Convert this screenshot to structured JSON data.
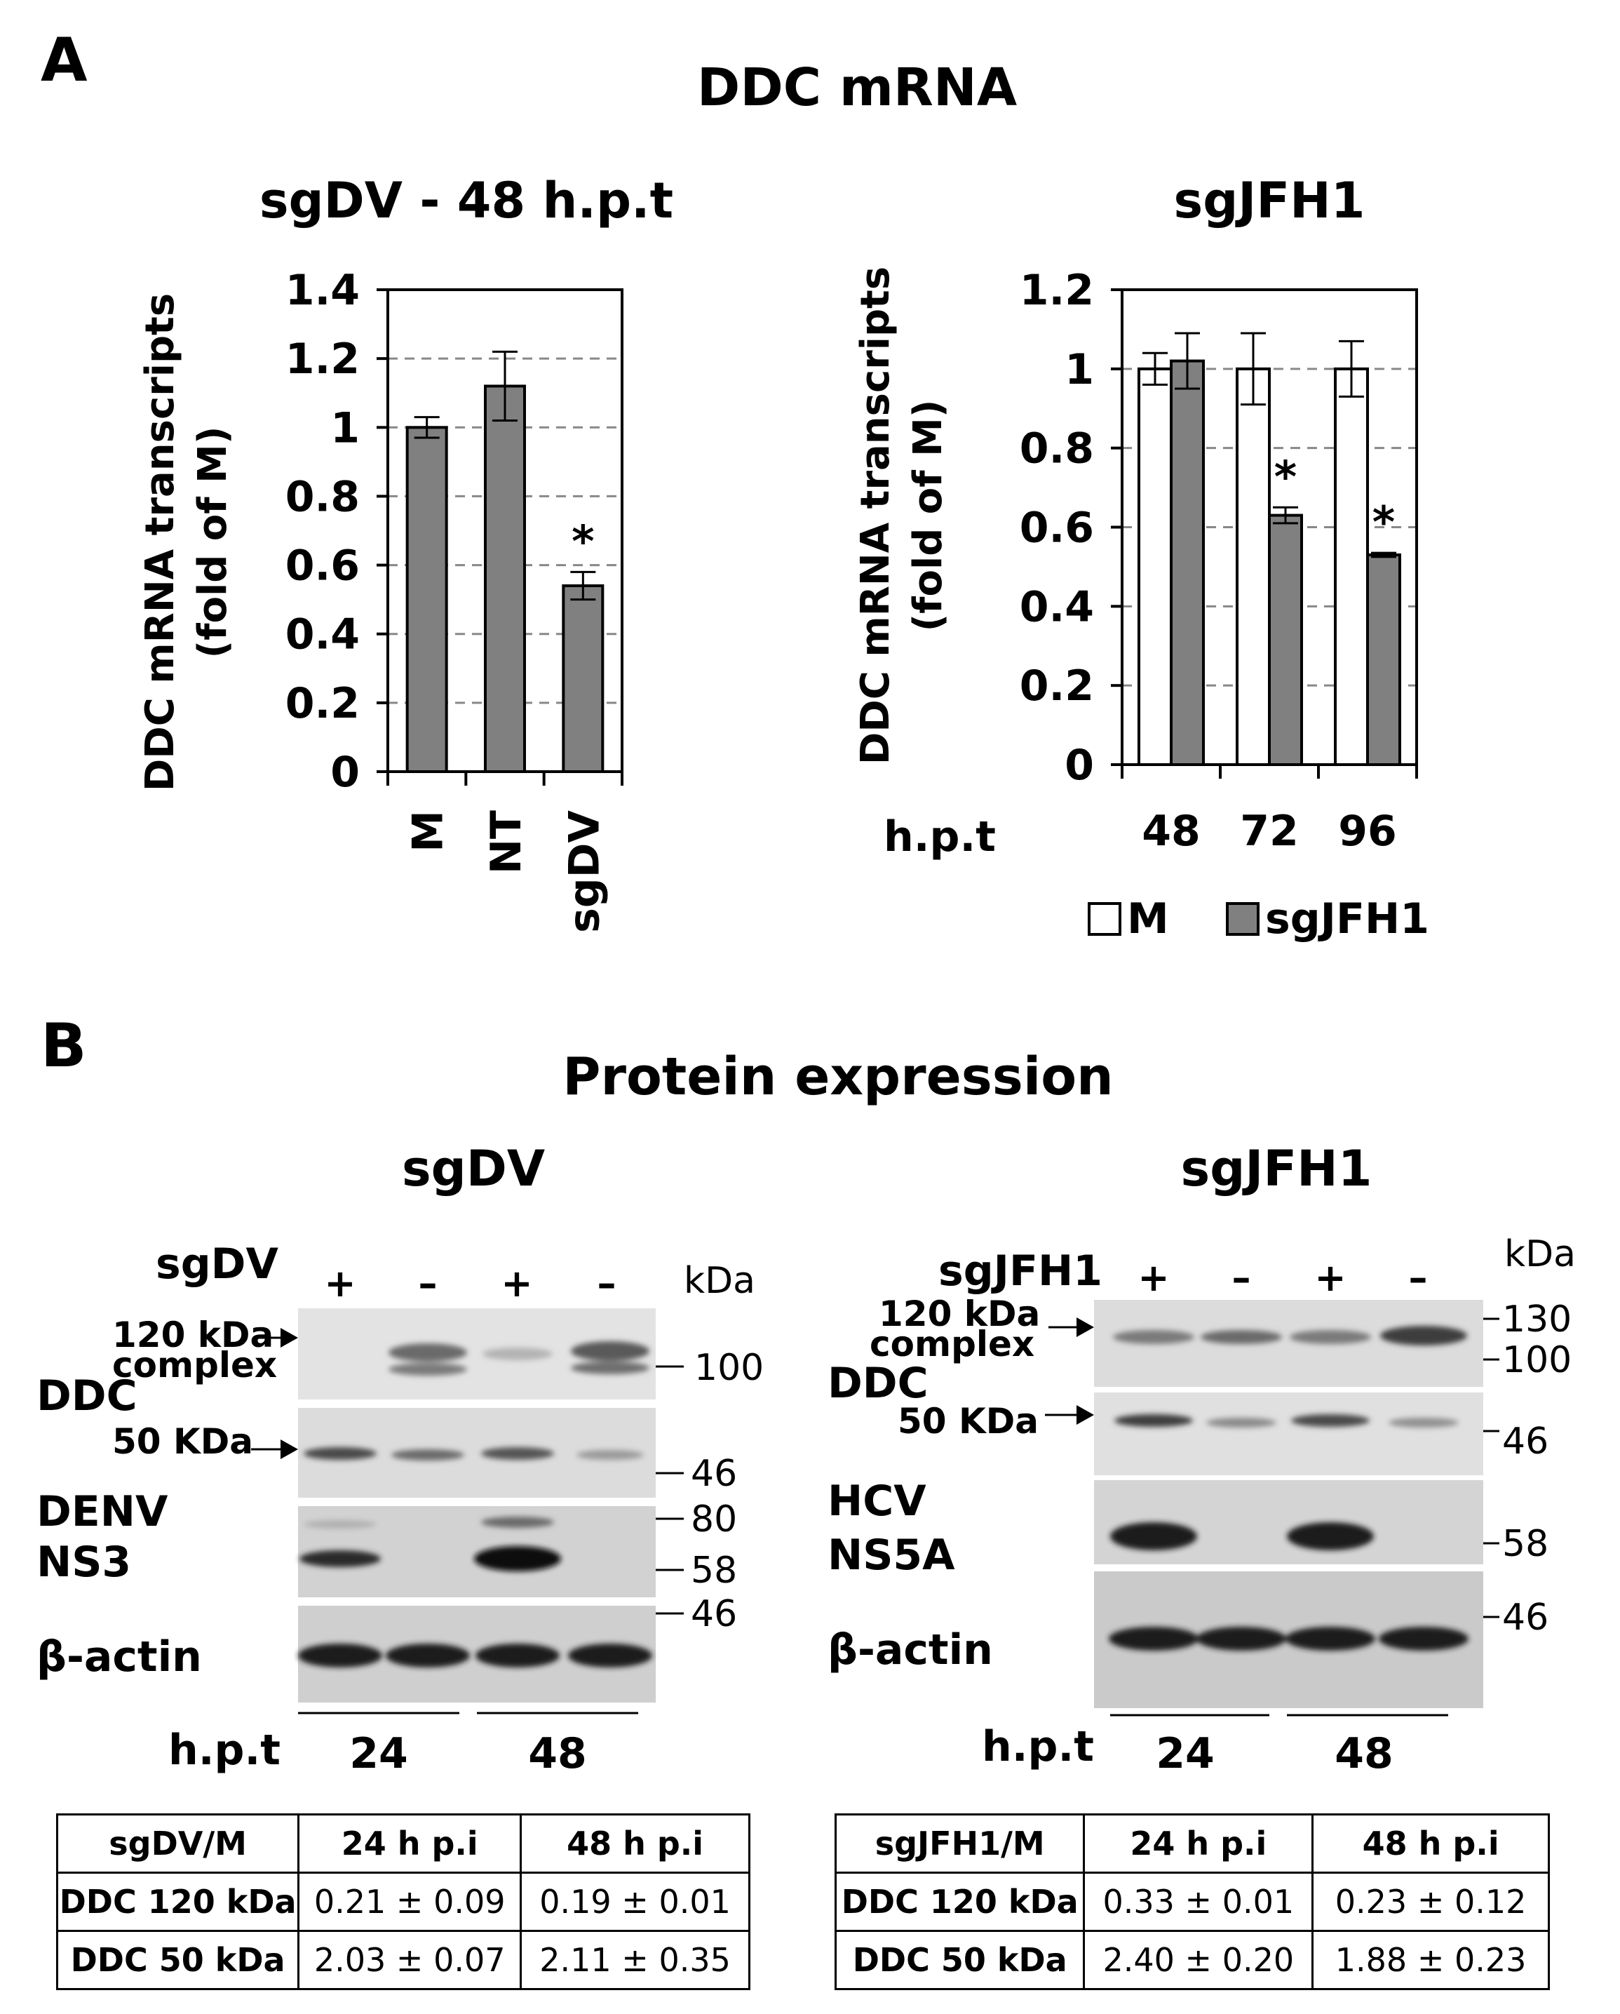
{
  "panel_a": {
    "letter": "A",
    "title": "DDC mRNA"
  },
  "panel_b": {
    "letter": "B",
    "title": "Protein expression"
  },
  "chart_data": [
    {
      "type": "bar",
      "title": "sgDV - 48 h.p.t",
      "ylabel_line1": "DDC mRNA transcripts",
      "ylabel_line2": "(fold of M)",
      "xlabel": "",
      "categories": [
        "M",
        "NT",
        "sgDV"
      ],
      "series": [
        {
          "values": [
            1.0,
            1.12,
            0.54
          ],
          "errors": [
            0.03,
            0.1,
            0.04
          ],
          "color": "#808080"
        }
      ],
      "significance": [
        "",
        "",
        "*"
      ],
      "ylim": [
        0,
        1.4
      ],
      "yticks": [
        "0",
        "0.2",
        "0.4",
        "0.6",
        "0.8",
        "1",
        "1.2",
        "1.4"
      ],
      "grid": "dashed horizontal"
    },
    {
      "type": "bar",
      "title": "sgJFH1",
      "ylabel_line1": "DDC mRNA transcripts",
      "ylabel_line2": "(fold of M)",
      "xlabel": "h.p.t",
      "categories": [
        "48",
        "72",
        "96"
      ],
      "series": [
        {
          "name": "M",
          "values": [
            1.0,
            1.0,
            1.0
          ],
          "errors": [
            0.04,
            0.09,
            0.07
          ],
          "color": "#ffffff"
        },
        {
          "name": "sgJFH1",
          "values": [
            1.02,
            0.63,
            0.53
          ],
          "errors": [
            0.07,
            0.02,
            0.005
          ],
          "color": "#808080"
        }
      ],
      "significance": [
        "",
        "*",
        "*"
      ],
      "ylim": [
        0,
        1.2
      ],
      "yticks": [
        "0",
        "0.2",
        "0.4",
        "0.6",
        "0.8",
        "1",
        "1.2"
      ],
      "grid": "dashed horizontal",
      "legend_position": "bottom"
    }
  ],
  "blot_left": {
    "title": "sgDV",
    "row_label": "sgDV",
    "signs": [
      "+",
      "–",
      "+",
      "–"
    ],
    "kda_unit": "kDa",
    "label_120_line1": "120 kDa",
    "label_120_line2": "complex",
    "label_ddc": "DDC",
    "label_50": "50 KDa",
    "label_ns3_line1": "DENV",
    "label_ns3_line2": "NS3",
    "label_actin": "β-actin",
    "markers": [
      "100",
      "46",
      "80",
      "58",
      "46"
    ],
    "hpt_label": "h.p.t",
    "hpt_values": [
      "24",
      "48"
    ]
  },
  "blot_right": {
    "title": "sgJFH1",
    "row_label": "sgJFH1",
    "signs": [
      "+",
      "–",
      "+",
      "–"
    ],
    "kda_unit": "kDa",
    "label_120_line1": "120 kDa",
    "label_120_line2": "complex",
    "label_ddc": "DDC",
    "label_50": "50 KDa",
    "label_ns5a_line1": "HCV",
    "label_ns5a_line2": "NS5A",
    "label_actin": "β-actin",
    "markers": [
      "130",
      "100",
      "46",
      "58",
      "46"
    ],
    "hpt_label": "h.p.t",
    "hpt_values": [
      "24",
      "48"
    ]
  },
  "table_left": {
    "header": [
      "sgDV/M",
      "24 h p.i",
      "48 h p.i"
    ],
    "rows": [
      [
        "DDC 120 kDa",
        "0.21 ± 0.09",
        "0.19 ± 0.01"
      ],
      [
        "DDC 50 kDa",
        "2.03 ± 0.07",
        "2.11 ± 0.35"
      ]
    ]
  },
  "table_right": {
    "header": [
      "sgJFH1/M",
      "24 h p.i",
      "48 h p.i"
    ],
    "rows": [
      [
        "DDC 120 kDa",
        "0.33 ± 0.01",
        "0.23 ± 0.12"
      ],
      [
        "DDC 50 kDa",
        "2.40 ± 0.20",
        "1.88 ± 0.23"
      ]
    ]
  }
}
